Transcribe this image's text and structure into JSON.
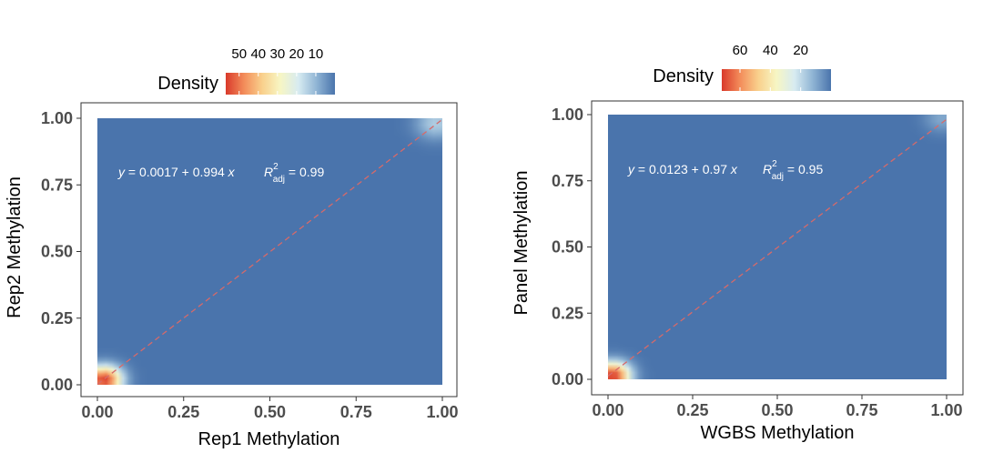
{
  "chart_data": [
    {
      "type": "heatmap",
      "title": "",
      "xlabel": "Rep1 Methylation",
      "ylabel": "Rep2 Methylation",
      "xlim": [
        0,
        1
      ],
      "ylim": [
        0,
        1
      ],
      "x_ticks": [
        "0.00",
        "0.25",
        "0.50",
        "0.75",
        "1.00"
      ],
      "y_ticks": [
        "0.00",
        "0.25",
        "0.50",
        "0.75",
        "1.00"
      ],
      "legend": {
        "title": "Density",
        "placement": "top",
        "ticks": [
          "50",
          "40",
          "30",
          "20",
          "10"
        ],
        "tick_values": [
          50,
          40,
          30,
          20,
          10
        ],
        "range": [
          0,
          57
        ],
        "reversed": true
      },
      "density_peaks": [
        {
          "x": 0.02,
          "y": 0.02,
          "density": 57,
          "spread": 0.035
        },
        {
          "x": 0.98,
          "y": 0.98,
          "density": 14,
          "spread": 0.04
        }
      ],
      "fit_line": {
        "intercept": 0.0017,
        "slope": 0.994,
        "x_range": [
          0,
          1
        ],
        "style": "dashed",
        "color": "#d66a6a"
      },
      "equation": {
        "prefix": "y",
        "eq": " = 0.0017 + 0.994 ",
        "var": "x"
      },
      "r2": {
        "sym": "R",
        "sup": "2",
        "sub": "adj",
        "value": " = 0.99"
      },
      "grid": false
    },
    {
      "type": "heatmap",
      "title": "",
      "xlabel": "WGBS Methylation",
      "ylabel": "Panel Methylation",
      "xlim": [
        0,
        1
      ],
      "ylim": [
        0,
        1
      ],
      "x_ticks": [
        "0.00",
        "0.25",
        "0.50",
        "0.75",
        "1.00"
      ],
      "y_ticks": [
        "0.00",
        "0.25",
        "0.50",
        "0.75",
        "1.00"
      ],
      "legend": {
        "title": "Density",
        "placement": "top",
        "ticks": [
          "60",
          "40",
          "20"
        ],
        "tick_values": [
          60,
          40,
          20
        ],
        "range": [
          0,
          72
        ],
        "reversed": true
      },
      "density_peaks": [
        {
          "x": 0.015,
          "y": 0.015,
          "density": 72,
          "spread": 0.035
        },
        {
          "x": 0.985,
          "y": 0.985,
          "density": 10,
          "spread": 0.035
        }
      ],
      "fit_line": {
        "intercept": 0.0123,
        "slope": 0.97,
        "x_range": [
          0,
          1
        ],
        "style": "dashed",
        "color": "#d66a6a"
      },
      "equation": {
        "prefix": "y",
        "eq": " = 0.0123 + 0.97 ",
        "var": "x"
      },
      "r2": {
        "sym": "R",
        "sup": "2",
        "sub": "adj",
        "value": " = 0.95"
      },
      "grid": false
    }
  ],
  "colors": {
    "background": "#4a74ac",
    "palette": [
      "#4a74ac",
      "#8fb4d4",
      "#d7ebf1",
      "#f7f6c4",
      "#f9d08c",
      "#f38c5a",
      "#d93a2b"
    ]
  }
}
